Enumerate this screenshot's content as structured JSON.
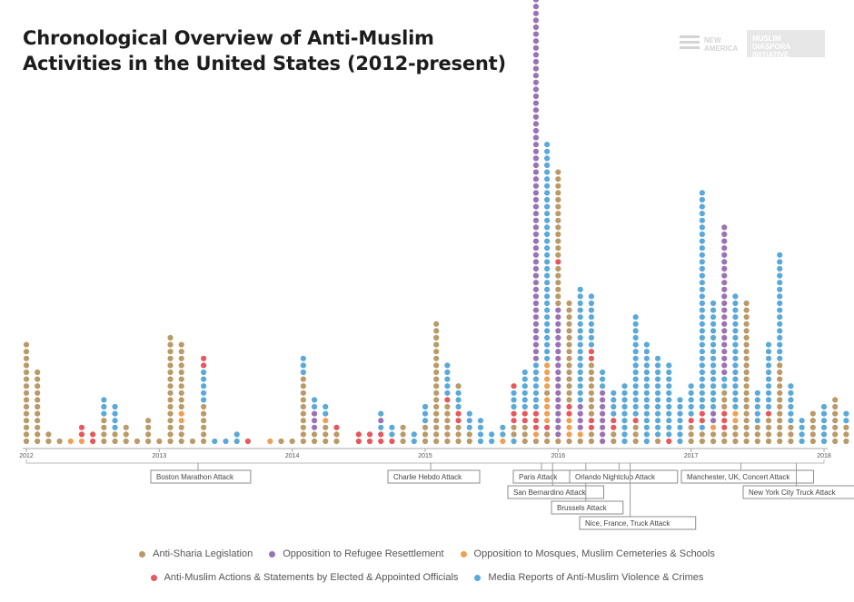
{
  "title_line1": "Chronological Overview of Anti-Muslim",
  "title_line2": "Activities in the United States (2012-present)",
  "logos": {
    "new_america": "NEW AMERICA",
    "initiative": "MUSLIM DIASPORA INITIATIVE"
  },
  "chart_data": {
    "type": "scatter",
    "title": "Chronological Overview of Anti-Muslim Activities in the United States (2012-present)",
    "xlabel": "",
    "ylabel": "",
    "grid": false,
    "legend_position": "bottom",
    "x_ticks": [
      "2012",
      "2013",
      "2014",
      "2015",
      "2016",
      "2017",
      "2018"
    ],
    "categories": [
      "Anti-Sharia Legislation",
      "Opposition to Refugee Resettlement",
      "Opposition to Mosques, Muslim Cemeteries & Schools",
      "Anti-Muslim Actions & Statements by Elected & Appointed Officials",
      "Media Reports of Anti-Muslim Violence & Crimes"
    ],
    "category_codes": [
      "S",
      "R",
      "M",
      "O",
      "V"
    ],
    "colors": {
      "S": "#b99a68",
      "R": "#9a72b5",
      "M": "#f0a055",
      "O": "#e5585d",
      "V": "#5aa9d8"
    },
    "note": "Each column is one month starting January 2012; each dot is one recorded activity; codes list dots bottom to top.",
    "months": [
      "SSSSSSSSSSSSSSS",
      "SSSSSSSSSSS",
      "SS",
      "S",
      "M",
      "MOO",
      "OO",
      "SSSSVVV",
      "SSVVVV",
      "SSS",
      "S",
      "SSSS",
      "S",
      "SSSSSSSSSSSSSSSS",
      "SSSMMSSSSSSSSSS",
      "S",
      "SSSSSSVVVVVOO",
      "V",
      "V",
      "VV",
      "O",
      "",
      "M",
      "S",
      "S",
      "SSSSSSSSSSVVV",
      "SSRRRVV",
      "SSSMVV",
      "SSO",
      "",
      "OO",
      "OO",
      "OOVRV",
      "OVV",
      "SSS",
      "VV",
      "SSSVVV",
      "SSSSSSSSSSSSSSSSSS",
      "SSSSSSOVVVVV",
      "SSSOOVVVS",
      "SSVVV",
      "VVVV",
      "VV",
      "MVV",
      "VSSOOVVVO",
      "SSSOOVVVVVV",
      "SMOOOVVVVVVVRRRRRRRRRRRRRRRRRRRRRRRRRRRRRRRRRRRRRRRRRRRRRRRRRRRRRRRRRRRRRRRR",
      "SSOMMMMSMMMMVVVVVVVVVVVVVVVVVVVVVVVVVVVVVVVV",
      "SRRRRRRRRRRRRRRRRRRRSSSSSSOSSSSSSSSSSSSS",
      "SMMMOOSSSSSSSSSSSSSSS",
      "SMRRRRVVVVVVVVVVVVVVVVV",
      "SSOOSSSSSSSSOOVVVVVVVV",
      "RRRRRRRRVVV",
      "SSOOVVVV",
      "VVVVVVVVV",
      "SSSOVVVVVVVVVVVVVVV",
      "VVVVVVVVVVVVVVV",
      "SVVVVVVVVVVVV",
      "OVVVVVVVVVVV",
      "VVVVVVV",
      "SSSOVVVVV",
      "SSVOOVVVVVVVVVVVVVVVVVVVVVVVVVVVVVVVV",
      "SSMRRVVVVVVVVVVVVVVVV",
      "SSOOOSSSVVRRRRRRRRRRRRRRRRRRRRRR",
      "SSSMMVVVVVVVVVVVVVVVVV",
      "SSSSSSSSSSSSSSSSSSSSS",
      "SSSVVVVV",
      "SSSSOVVVVVVVVVV",
      "SSSSSSSSSSSSVVVVVVVVVVVVVVVV",
      "SSSVVVVVV",
      "VVVV",
      "SSSSS",
      "VVVVVV",
      "SSSSSSS",
      "SSSVV",
      "SSS"
    ],
    "events": [
      {
        "label": "Boston Marathon Attack",
        "month": 15
      },
      {
        "label": "Charlie Hebdo Attack",
        "month": 36
      },
      {
        "label": "Paris Attack",
        "month": 46
      },
      {
        "label": "San Bernardino Attack",
        "month": 47
      },
      {
        "label": "Brussels Attack",
        "month": 50
      },
      {
        "label": "Orlando Nightclub Attack",
        "month": 53
      },
      {
        "label": "Nice, France, Truck Attack",
        "month": 54
      },
      {
        "label": "Manchester, UK, Concert Attack",
        "month": 64
      },
      {
        "label": "New York City Truck Attack",
        "month": 69
      }
    ]
  }
}
